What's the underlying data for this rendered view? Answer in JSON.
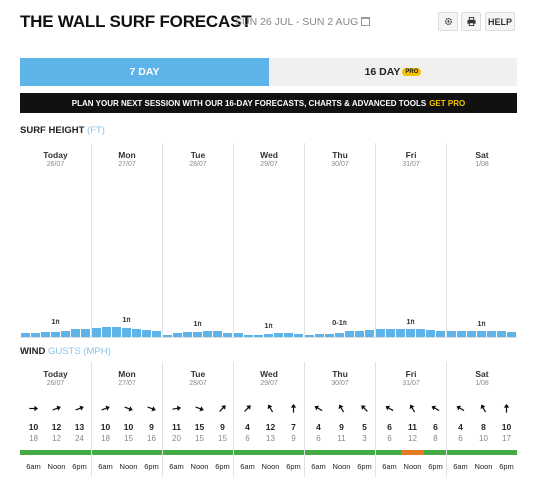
{
  "header": {
    "title": "THE WALL SURF FORECAST",
    "dates": "SUN 26 JUL - SUN 2 AUG",
    "calendar_icon": "calendar-icon",
    "settings_icon": "gear-icon",
    "print_icon": "print-icon",
    "help_label": "HELP"
  },
  "tabs": {
    "seven_day": "7 DAY",
    "sixteen_day": "16 DAY",
    "pro_badge": "PRO"
  },
  "promo": {
    "text": "PLAN YOUR NEXT SESSION WITH OUR 16-DAY FORECASTS, CHARTS & ADVANCED TOOLS",
    "cta": "GET PRO"
  },
  "surf": {
    "title": "SURF HEIGHT",
    "unit": "(FT)",
    "bar_color": "#5eb3e8",
    "days": [
      {
        "name": "Today",
        "date": "26/07",
        "label": "1",
        "label_unit": "ft",
        "heights": [
          0.35,
          0.35,
          0.45,
          0.45,
          0.55,
          0.65,
          0.7
        ]
      },
      {
        "name": "Mon",
        "date": "27/07",
        "label": "1",
        "label_unit": "ft",
        "heights": [
          0.75,
          0.8,
          0.8,
          0.75,
          0.7,
          0.6,
          0.5
        ]
      },
      {
        "name": "Tue",
        "date": "28/07",
        "label": "1",
        "label_unit": "ft",
        "heights": [
          0.15,
          0.35,
          0.45,
          0.45,
          0.55,
          0.5,
          0.4
        ]
      },
      {
        "name": "Wed",
        "date": "29/07",
        "label": "1",
        "label_unit": "ft",
        "heights": [
          0.35,
          0.25,
          0.25,
          0.3,
          0.35,
          0.4,
          0.3
        ]
      },
      {
        "name": "Thu",
        "date": "30/07",
        "label": "0-1",
        "label_unit": "ft",
        "heights": [
          0.25,
          0.3,
          0.3,
          0.4,
          0.5,
          0.55,
          0.6
        ]
      },
      {
        "name": "Fri",
        "date": "31/07",
        "label": "1",
        "label_unit": "ft",
        "heights": [
          0.65,
          0.7,
          0.7,
          0.7,
          0.65,
          0.6,
          0.55
        ]
      },
      {
        "name": "Sat",
        "date": "1/08",
        "label": "1",
        "label_unit": "ft",
        "heights": [
          0.55,
          0.55,
          0.55,
          0.55,
          0.5,
          0.5,
          0.45
        ]
      }
    ]
  },
  "wind": {
    "title": "WIND",
    "subtitle": "GUSTS",
    "unit": "(MPH)",
    "colors": {
      "green": "#44aa44",
      "orange": "#e67a22"
    },
    "times": [
      "6am",
      "Noon",
      "6pm"
    ],
    "days": [
      {
        "name": "Today",
        "date": "26/07",
        "slots": [
          {
            "speed": "10",
            "gust": "18",
            "dir": 90,
            "color": "green"
          },
          {
            "speed": "12",
            "gust": "12",
            "dir": 70,
            "color": "green"
          },
          {
            "speed": "13",
            "gust": "24",
            "dir": 70,
            "color": "green"
          }
        ]
      },
      {
        "name": "Mon",
        "date": "27/07",
        "slots": [
          {
            "speed": "10",
            "gust": "18",
            "dir": 70,
            "color": "green"
          },
          {
            "speed": "10",
            "gust": "15",
            "dir": 110,
            "color": "green"
          },
          {
            "speed": "9",
            "gust": "16",
            "dir": 110,
            "color": "green"
          }
        ]
      },
      {
        "name": "Tue",
        "date": "28/07",
        "slots": [
          {
            "speed": "11",
            "gust": "20",
            "dir": 80,
            "color": "green"
          },
          {
            "speed": "15",
            "gust": "15",
            "dir": 110,
            "color": "green"
          },
          {
            "speed": "9",
            "gust": "15",
            "dir": 45,
            "color": "green"
          }
        ]
      },
      {
        "name": "Wed",
        "date": "29/07",
        "slots": [
          {
            "speed": "4",
            "gust": "6",
            "dir": 45,
            "color": "green"
          },
          {
            "speed": "12",
            "gust": "13",
            "dir": 330,
            "color": "green"
          },
          {
            "speed": "7",
            "gust": "9",
            "dir": 0,
            "color": "green"
          }
        ]
      },
      {
        "name": "Thu",
        "date": "30/07",
        "slots": [
          {
            "speed": "4",
            "gust": "6",
            "dir": 300,
            "color": "green"
          },
          {
            "speed": "9",
            "gust": "11",
            "dir": 330,
            "color": "green"
          },
          {
            "speed": "5",
            "gust": "3",
            "dir": 315,
            "color": "green"
          }
        ]
      },
      {
        "name": "Fri",
        "date": "31/07",
        "slots": [
          {
            "speed": "6",
            "gust": "6",
            "dir": 300,
            "color": "green"
          },
          {
            "speed": "11",
            "gust": "12",
            "dir": 330,
            "color": "orange"
          },
          {
            "speed": "6",
            "gust": "8",
            "dir": 300,
            "color": "green"
          }
        ]
      },
      {
        "name": "Sat",
        "date": "1/08",
        "slots": [
          {
            "speed": "4",
            "gust": "6",
            "dir": 300,
            "color": "green"
          },
          {
            "speed": "8",
            "gust": "10",
            "dir": 330,
            "color": "green"
          },
          {
            "speed": "10",
            "gust": "17",
            "dir": 0,
            "color": "green"
          }
        ]
      }
    ]
  }
}
